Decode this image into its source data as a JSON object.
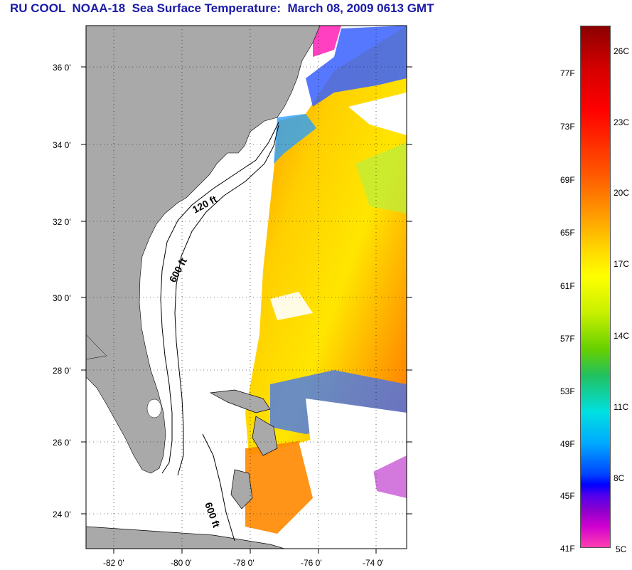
{
  "title": "RU COOL  NOAA-18  Sea Surface Temperature:  March 08, 2009 0613 GMT",
  "map": {
    "lat_labels": [
      "36 0'",
      "34 0'",
      "32 0'",
      "30 0'",
      "28 0'",
      "26 0'",
      "24 0'"
    ],
    "lon_labels": [
      "-82 0'",
      "-80 0'",
      "-78 0'",
      "-76 0'",
      "-74 0'"
    ],
    "contour_labels": [
      "120 ft",
      "600 ft",
      "600 ft"
    ],
    "colors": {
      "land": "#a9a9a9",
      "water_bg": "#ffffff",
      "warm": "#ff9a00",
      "mid": "#ffe000",
      "cool": "#2b4cff",
      "cold": "#ff30c0"
    }
  },
  "colorbar": {
    "fahrenheit": [
      "77F",
      "73F",
      "69F",
      "65F",
      "61F",
      "57F",
      "53F",
      "49F",
      "45F",
      "41F"
    ],
    "celsius": [
      "26C",
      "23C",
      "20C",
      "17C",
      "14C",
      "11C",
      "8C",
      "5C"
    ]
  }
}
